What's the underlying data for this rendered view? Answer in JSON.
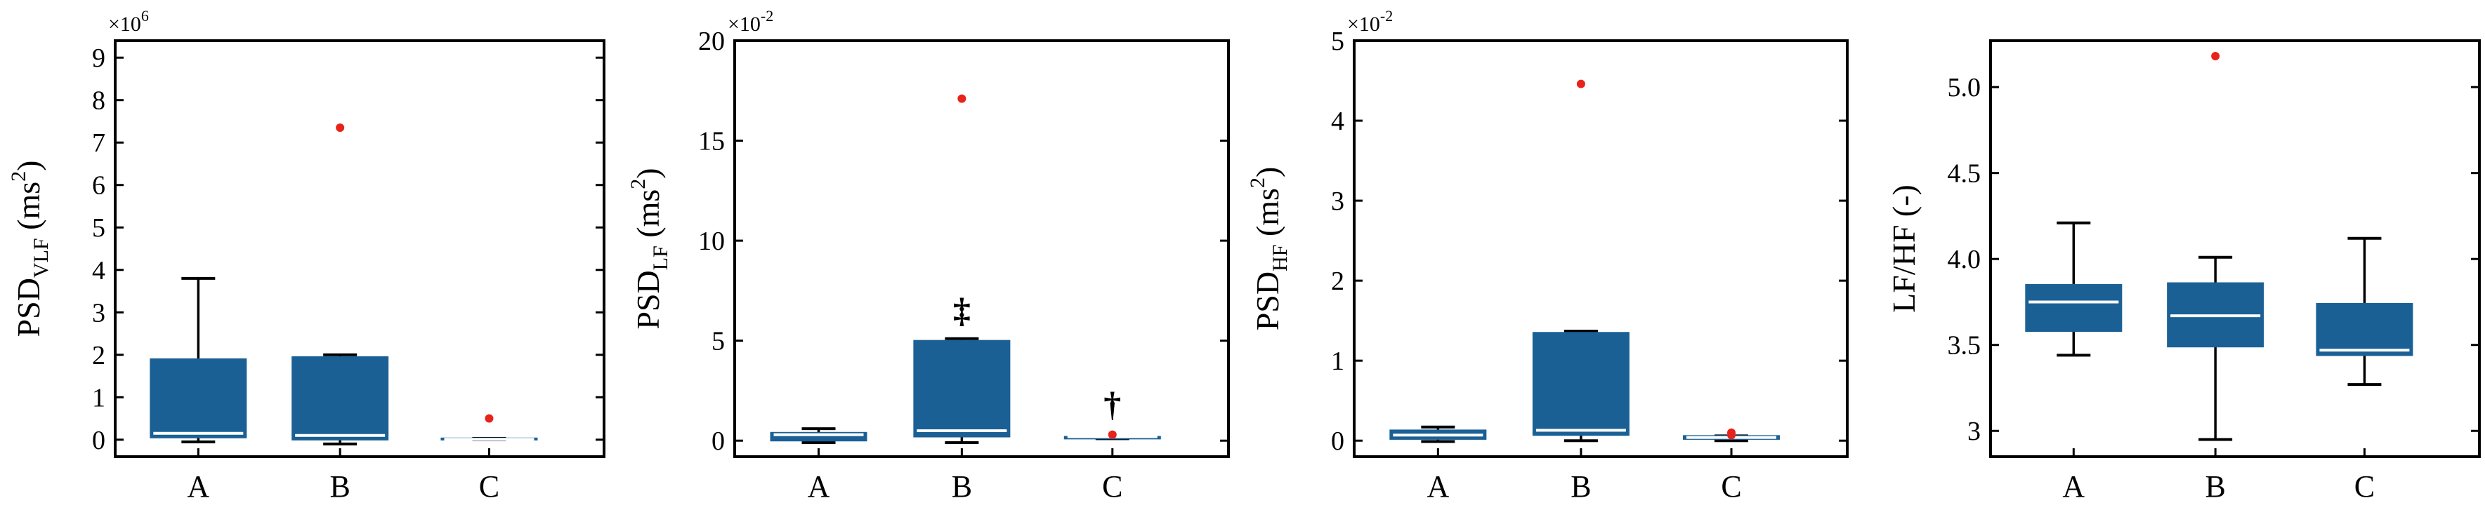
{
  "colors": {
    "box": "#1a6095",
    "median": "#ffffff",
    "whisker": "#000000",
    "outlier": "#e8231a",
    "axes": "#000000"
  },
  "chart_data": [
    {
      "type": "box",
      "categories": [
        "A",
        "B",
        "C"
      ],
      "ylabel": {
        "main": "PSD",
        "sub": "VLF",
        "unit": " (ms",
        "sup": "2",
        "close": ")"
      },
      "exponent": {
        "base": "×10",
        "power": "6"
      },
      "ylim": [
        -0.4,
        9.4
      ],
      "ticks": [
        0,
        1,
        2,
        3,
        4,
        5,
        6,
        7,
        8,
        9
      ],
      "tick_labels": [
        "0",
        "1",
        "2",
        "3",
        "4",
        "5",
        "6",
        "7",
        "8",
        "9"
      ],
      "boxes": [
        {
          "category": "A",
          "min": -0.05,
          "q1": 0.05,
          "median": 0.15,
          "q3": 1.9,
          "max": 3.8,
          "outliers": []
        },
        {
          "category": "B",
          "min": -0.1,
          "q1": 0.0,
          "median": 0.1,
          "q3": 1.95,
          "max": 2.0,
          "outliers": [
            7.35
          ]
        },
        {
          "category": "C",
          "min": 0.0,
          "q1": 0.0,
          "median": 0.01,
          "q3": 0.03,
          "max": 0.03,
          "outliers": [
            0.5
          ]
        }
      ],
      "annotations": []
    },
    {
      "type": "box",
      "categories": [
        "A",
        "B",
        "C"
      ],
      "ylabel": {
        "main": "PSD",
        "sub": "LF",
        "unit": " (ms",
        "sup": "2",
        "close": ")"
      },
      "exponent": {
        "base": "×10",
        "power": "-2"
      },
      "ylim": [
        -0.8,
        20
      ],
      "ticks": [
        0,
        5,
        10,
        15,
        20
      ],
      "tick_labels": [
        "0",
        "5",
        "10",
        "15",
        "20"
      ],
      "boxes": [
        {
          "category": "A",
          "min": -0.1,
          "q1": 0.0,
          "median": 0.3,
          "q3": 0.4,
          "max": 0.6,
          "outliers": []
        },
        {
          "category": "B",
          "min": -0.1,
          "q1": 0.2,
          "median": 0.5,
          "q3": 5.0,
          "max": 5.1,
          "outliers": [
            17.1
          ]
        },
        {
          "category": "C",
          "min": 0.1,
          "q1": 0.1,
          "median": 0.2,
          "q3": 0.2,
          "max": 0.2,
          "outliers": [
            0.3
          ]
        }
      ],
      "annotations": [
        {
          "category": "B",
          "symbol": "‡",
          "y": 6.5
        },
        {
          "category": "C",
          "symbol": "†",
          "y": 1.8
        }
      ]
    },
    {
      "type": "box",
      "categories": [
        "A",
        "B",
        "C"
      ],
      "ylabel": {
        "main": "PSD",
        "sub": "HF",
        "unit": " (ms",
        "sup": "2",
        "close": ")"
      },
      "exponent": {
        "base": "×10",
        "power": "-2"
      },
      "ylim": [
        -0.2,
        5
      ],
      "ticks": [
        0,
        1,
        2,
        3,
        4,
        5
      ],
      "tick_labels": [
        "0",
        "1",
        "2",
        "3",
        "4",
        "5"
      ],
      "boxes": [
        {
          "category": "A",
          "min": -0.01,
          "q1": 0.02,
          "median": 0.07,
          "q3": 0.13,
          "max": 0.17,
          "outliers": []
        },
        {
          "category": "B",
          "min": 0.0,
          "q1": 0.07,
          "median": 0.13,
          "q3": 1.35,
          "max": 1.37,
          "outliers": [
            4.46
          ]
        },
        {
          "category": "C",
          "min": 0.0,
          "q1": 0.02,
          "median": 0.04,
          "q3": 0.06,
          "max": 0.06,
          "outliers": [
            0.1,
            0.07
          ]
        }
      ],
      "annotations": []
    },
    {
      "type": "box",
      "categories": [
        "A",
        "B",
        "C"
      ],
      "ylabel": {
        "main": "LF/HF (-)",
        "sub": "",
        "unit": "",
        "sup": "",
        "close": ""
      },
      "exponent": {
        "base": "",
        "power": ""
      },
      "ylim": [
        2.85,
        5.27
      ],
      "ticks": [
        3,
        3.5,
        4,
        4.5,
        5
      ],
      "tick_labels": [
        "3",
        "3.5",
        "4.0",
        "4.5",
        "5.0"
      ],
      "boxes": [
        {
          "category": "A",
          "min": 3.44,
          "q1": 3.58,
          "median": 3.75,
          "q3": 3.85,
          "max": 4.21,
          "outliers": []
        },
        {
          "category": "B",
          "min": 2.95,
          "q1": 3.49,
          "median": 3.67,
          "q3": 3.86,
          "max": 4.01,
          "outliers": [
            5.18
          ]
        },
        {
          "category": "C",
          "min": 3.27,
          "q1": 3.44,
          "median": 3.47,
          "q3": 3.74,
          "max": 4.12,
          "outliers": []
        }
      ],
      "annotations": []
    }
  ]
}
